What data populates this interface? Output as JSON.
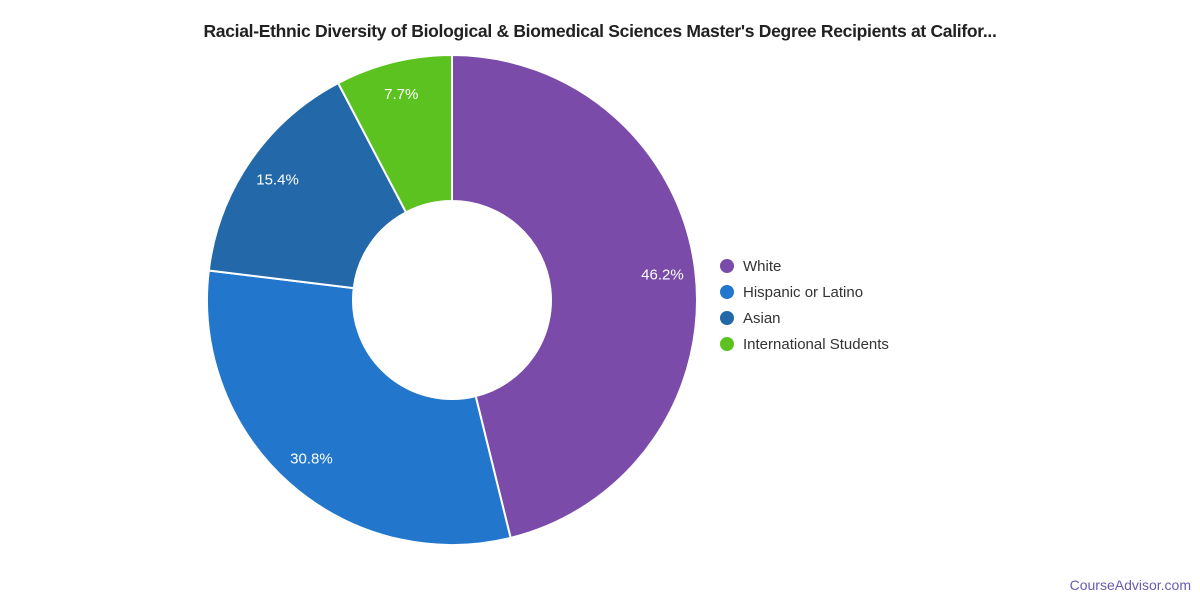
{
  "chart_data": {
    "type": "pie",
    "donut": true,
    "title": "Racial-Ethnic Diversity of Biological & Biomedical Sciences Master's Degree Recipients at Califor...",
    "categories": [
      "White",
      "Hispanic or Latino",
      "Asian",
      "International Students"
    ],
    "values": [
      46.2,
      30.8,
      15.4,
      7.7
    ],
    "slice_labels": [
      "46.2%",
      "30.8%",
      "15.4%",
      "7.7%"
    ],
    "colors": [
      "#7A4BA8",
      "#2277CD",
      "#2368A8",
      "#5CC220"
    ],
    "label_color": "#ffffff",
    "start_angle_deg": 0,
    "direction": "clockwise",
    "legend_position": "right"
  },
  "footer": {
    "link_text": "CourseAdvisor.com",
    "link_color": "#6A5BAE"
  }
}
